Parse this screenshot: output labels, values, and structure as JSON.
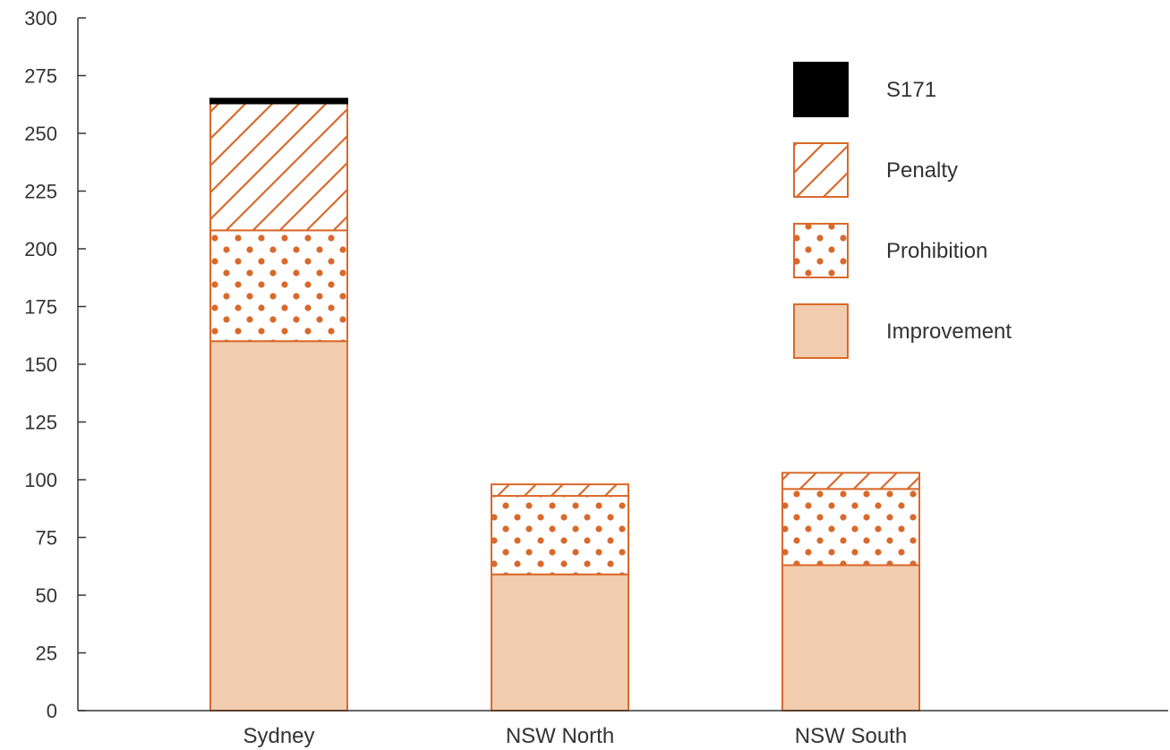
{
  "chart_data": {
    "type": "bar",
    "stacked": true,
    "categories": [
      "Sydney",
      "NSW North",
      "NSW South"
    ],
    "series": [
      {
        "name": "Improvement",
        "values": [
          160,
          59,
          63
        ],
        "fill": "#f2ccaf",
        "pattern": "solid"
      },
      {
        "name": "Prohibition",
        "values": [
          48,
          34,
          33
        ],
        "fill": "#ffffff",
        "pattern": "dots"
      },
      {
        "name": "Penalty",
        "values": [
          55,
          5,
          7
        ],
        "fill": "#ffffff",
        "pattern": "hatch"
      },
      {
        "name": "S171",
        "values": [
          2,
          0,
          0
        ],
        "fill": "#000000",
        "pattern": "solid"
      }
    ],
    "yticks": [
      0,
      25,
      50,
      75,
      100,
      125,
      150,
      175,
      200,
      225,
      250,
      275,
      300
    ],
    "ylim": [
      0,
      300
    ],
    "legend_order": [
      "S171",
      "Penalty",
      "Prohibition",
      "Improvement"
    ],
    "legend_placement": "top-right",
    "grid": false,
    "title": "",
    "xlabel": "",
    "ylabel": ""
  },
  "colors": {
    "accent": "#d9692b",
    "improvement_fill": "#f2ccaf",
    "s171": "#000000",
    "axis": "#333333"
  }
}
